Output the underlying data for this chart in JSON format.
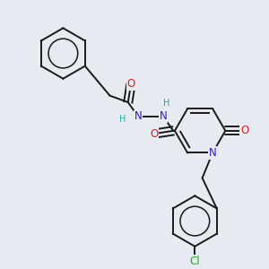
{
  "background_color": "#e8eaf2",
  "bond_color": "#1a1a1a",
  "atom_colors": {
    "N": "#2020cc",
    "O": "#cc2020",
    "Cl": "#20aa20",
    "C": "#1a1a1a",
    "H": "#20aaaa"
  },
  "line_width": 1.4,
  "fs": 8.5
}
